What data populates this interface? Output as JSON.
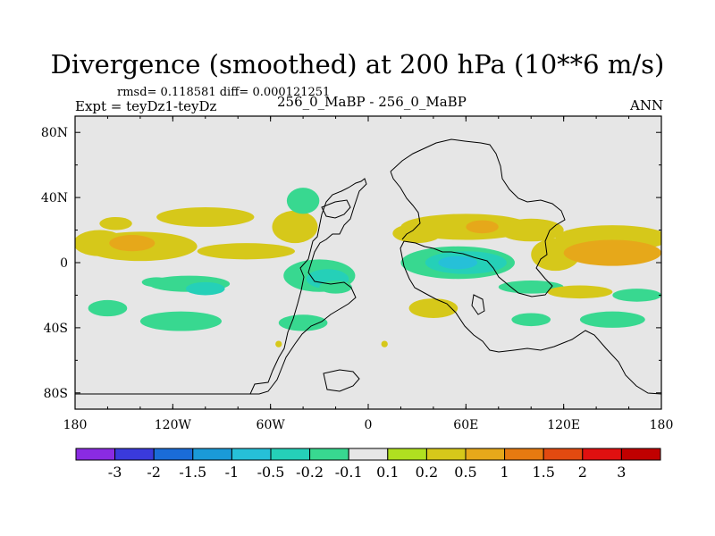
{
  "chart_data": {
    "type": "heatmap",
    "title": "Divergence (smoothed) at 200 hPa (10**6 m/s)",
    "stats_line": "rmsd= 0.118581 diff= 0.000121251",
    "expt_line": "Expt = teyDz1-teyDz",
    "cases_line": "256_0_MaBP - 256_0_MaBP",
    "season": "ANN",
    "xlim": [
      -180,
      180
    ],
    "ylim": [
      -90,
      90
    ],
    "x_ticks": [
      {
        "value": -180,
        "label": "180"
      },
      {
        "value": -120,
        "label": "120W"
      },
      {
        "value": -60,
        "label": "60W"
      },
      {
        "value": 0,
        "label": "0"
      },
      {
        "value": 60,
        "label": "60E"
      },
      {
        "value": 120,
        "label": "120E"
      },
      {
        "value": 180,
        "label": "180"
      }
    ],
    "y_ticks": [
      {
        "value": 80,
        "label": "80N"
      },
      {
        "value": 40,
        "label": "40N"
      },
      {
        "value": 0,
        "label": "0"
      },
      {
        "value": -40,
        "label": "40S"
      },
      {
        "value": -80,
        "label": "80S"
      }
    ],
    "colorbar": {
      "levels": [
        "-3",
        "-2",
        "-1.5",
        "-1",
        "-0.5",
        "-0.2",
        "-0.1",
        "0.1",
        "0.2",
        "0.5",
        "1",
        "1.5",
        "2",
        "3"
      ],
      "colors": [
        "#8a2be2",
        "#3a3adc",
        "#1a6cd8",
        "#1a9ad8",
        "#26c0d8",
        "#25d0b8",
        "#38d890",
        "#e6e6e6",
        "#b0e020",
        "#d6c81a",
        "#e6a81a",
        "#e67a10",
        "#e24a10",
        "#e01010",
        "#c00000"
      ]
    },
    "background_color": "#e6e6e6",
    "blobs": [
      {
        "lon": -165,
        "lat": 12,
        "rlon": 16,
        "rlat": 8,
        "level": "0.2"
      },
      {
        "lon": -140,
        "lat": 10,
        "rlon": 35,
        "rlat": 9,
        "level": "0.2"
      },
      {
        "lon": -145,
        "lat": 12,
        "rlon": 14,
        "rlat": 5,
        "level": "0.5"
      },
      {
        "lon": -100,
        "lat": 28,
        "rlon": 30,
        "rlat": 6,
        "level": "0.2"
      },
      {
        "lon": -75,
        "lat": 7,
        "rlon": 30,
        "rlat": 5,
        "level": "0.2"
      },
      {
        "lon": -45,
        "lat": 22,
        "rlon": 14,
        "rlat": 10,
        "level": "0.2"
      },
      {
        "lon": -40,
        "lat": 38,
        "rlon": 10,
        "rlat": 8,
        "level": "-0.1"
      },
      {
        "lon": -155,
        "lat": 24,
        "rlon": 10,
        "rlat": 4,
        "level": "0.2"
      },
      {
        "lon": -110,
        "lat": -13,
        "rlon": 25,
        "rlat": 5,
        "level": "-0.1"
      },
      {
        "lon": -100,
        "lat": -16,
        "rlon": 12,
        "rlat": 4,
        "level": "-0.2"
      },
      {
        "lon": -130,
        "lat": -12,
        "rlon": 9,
        "rlat": 3,
        "level": "-0.1"
      },
      {
        "lon": -30,
        "lat": -8,
        "rlon": 22,
        "rlat": 10,
        "level": "-0.1"
      },
      {
        "lon": -25,
        "lat": -10,
        "rlon": 13,
        "rlat": 6,
        "level": "-0.2"
      },
      {
        "lon": -160,
        "lat": -28,
        "rlon": 12,
        "rlat": 5,
        "level": "-0.1"
      },
      {
        "lon": -115,
        "lat": -36,
        "rlon": 25,
        "rlat": 6,
        "level": "-0.1"
      },
      {
        "lon": -40,
        "lat": -37,
        "rlon": 15,
        "rlat": 5,
        "level": "-0.1"
      },
      {
        "lon": -20,
        "lat": -15,
        "rlon": 10,
        "rlat": 4,
        "level": "-0.1"
      },
      {
        "lon": 30,
        "lat": 18,
        "rlon": 15,
        "rlat": 6,
        "level": "0.2"
      },
      {
        "lon": 60,
        "lat": 22,
        "rlon": 40,
        "rlat": 8,
        "level": "0.2"
      },
      {
        "lon": 70,
        "lat": 22,
        "rlon": 10,
        "rlat": 4,
        "level": "0.5"
      },
      {
        "lon": 100,
        "lat": 20,
        "rlon": 20,
        "rlat": 7,
        "level": "0.2"
      },
      {
        "lon": 150,
        "lat": 15,
        "rlon": 35,
        "rlat": 8,
        "level": "0.2"
      },
      {
        "lon": 115,
        "lat": 5,
        "rlon": 15,
        "rlat": 10,
        "level": "0.2"
      },
      {
        "lon": 150,
        "lat": 6,
        "rlon": 30,
        "rlat": 8,
        "level": "0.5"
      },
      {
        "lon": 55,
        "lat": 0,
        "rlon": 35,
        "rlat": 10,
        "level": "-0.1"
      },
      {
        "lon": 60,
        "lat": 0,
        "rlon": 25,
        "rlat": 7,
        "level": "-0.2"
      },
      {
        "lon": 55,
        "lat": 0,
        "rlon": 12,
        "rlat": 4,
        "level": "-0.5"
      },
      {
        "lon": 100,
        "lat": -15,
        "rlon": 20,
        "rlat": 4,
        "level": "-0.1"
      },
      {
        "lon": 130,
        "lat": -18,
        "rlon": 20,
        "rlat": 4,
        "level": "0.2"
      },
      {
        "lon": 165,
        "lat": -20,
        "rlon": 15,
        "rlat": 4,
        "level": "-0.1"
      },
      {
        "lon": 40,
        "lat": -28,
        "rlon": 15,
        "rlat": 6,
        "level": "0.2"
      },
      {
        "lon": 100,
        "lat": -35,
        "rlon": 12,
        "rlat": 4,
        "level": "-0.1"
      },
      {
        "lon": 150,
        "lat": -35,
        "rlon": 20,
        "rlat": 5,
        "level": "-0.1"
      },
      {
        "lon": -55,
        "lat": -50,
        "rlon": 2,
        "rlat": 2,
        "level": "0.2"
      },
      {
        "lon": 10,
        "lat": -50,
        "rlon": 2,
        "rlat": 2,
        "level": "0.2"
      }
    ]
  }
}
